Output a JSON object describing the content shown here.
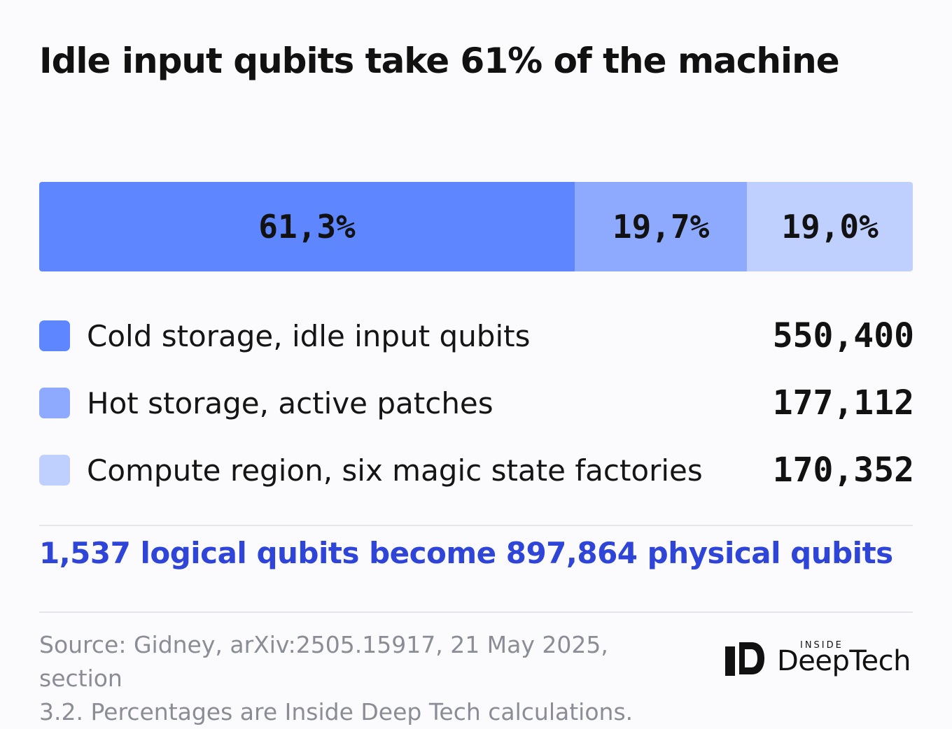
{
  "title": "Idle input qubits take 61% of the machine",
  "chart_data": {
    "type": "bar",
    "subtype": "100% stacked horizontal bar",
    "total": 897864,
    "segments": [
      {
        "label": "Cold storage, idle input qubits",
        "value": 550400,
        "percent_label": "61,3%",
        "percent": 61.3,
        "color": "#5e87ff"
      },
      {
        "label": "Hot storage, active patches",
        "value": 177112,
        "percent_label": "19,7%",
        "percent": 19.7,
        "color": "#8eaafe"
      },
      {
        "label": "Compute region, six magic state factories",
        "value": 170352,
        "percent_label": "19,0%",
        "percent": 19.0,
        "color": "#bfcffe"
      }
    ]
  },
  "legend": [
    {
      "label": "Cold storage, idle input qubits",
      "value_label": "550,400"
    },
    {
      "label": "Hot storage, active patches",
      "value_label": "177,112"
    },
    {
      "label": "Compute region, six magic state factories",
      "value_label": "170,352"
    }
  ],
  "highlight": "1,537 logical qubits become 897,864 physical qubits",
  "source_line1": "Source: Gidney, arXiv:2505.15917, 21 May 2025, section",
  "source_line2": "3.2. Percentages are Inside Deep Tech calculations.",
  "logo": {
    "small": "INSIDE",
    "large": "DeepTech"
  }
}
